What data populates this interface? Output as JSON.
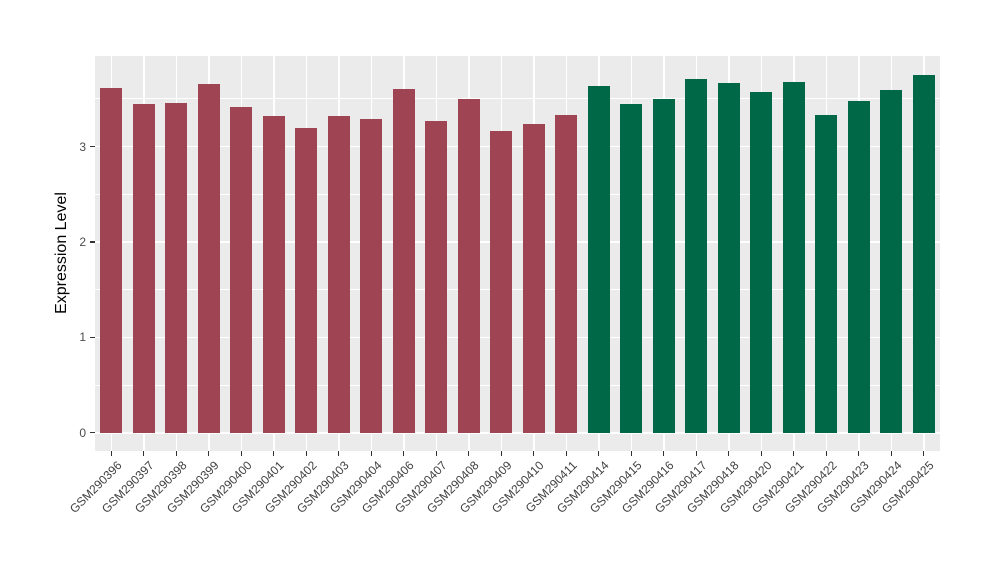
{
  "chart_data": {
    "type": "bar",
    "title": "",
    "xlabel": "",
    "ylabel": "Expression Level",
    "categories": [
      "GSM290396",
      "GSM290397",
      "GSM290398",
      "GSM290399",
      "GSM290400",
      "GSM290401",
      "GSM290402",
      "GSM290403",
      "GSM290404",
      "GSM290406",
      "GSM290407",
      "GSM290408",
      "GSM290409",
      "GSM290410",
      "GSM290411",
      "GSM290414",
      "GSM290415",
      "GSM290416",
      "GSM290417",
      "GSM290418",
      "GSM290420",
      "GSM290421",
      "GSM290422",
      "GSM290423",
      "GSM290424",
      "GSM290425"
    ],
    "values": [
      3.61,
      3.45,
      3.46,
      3.66,
      3.42,
      3.32,
      3.2,
      3.32,
      3.29,
      3.6,
      3.27,
      3.5,
      3.16,
      3.24,
      3.33,
      3.64,
      3.45,
      3.5,
      3.71,
      3.67,
      3.57,
      3.68,
      3.33,
      3.48,
      3.59,
      3.75
    ],
    "groups": [
      {
        "name": "group-1",
        "color": "#9E4452",
        "count": 15
      },
      {
        "name": "group-2",
        "color": "#006847",
        "count": 11
      }
    ],
    "yticks": [
      "0",
      "1",
      "2",
      "3"
    ],
    "ytick_values": [
      0,
      1,
      2,
      3
    ],
    "minor_gridline_values": [
      0.5,
      1.5,
      2.5,
      3.5
    ],
    "ylim": [
      0,
      3.95
    ],
    "panel_value_range": [
      -0.19,
      3.95
    ],
    "grid": "on",
    "legend": "none",
    "panel_bg": "#EBEBEB",
    "grid_color": "#FFFFFF",
    "axis_text_color": "#4D4D4D",
    "axis_title_color": "#000000"
  }
}
